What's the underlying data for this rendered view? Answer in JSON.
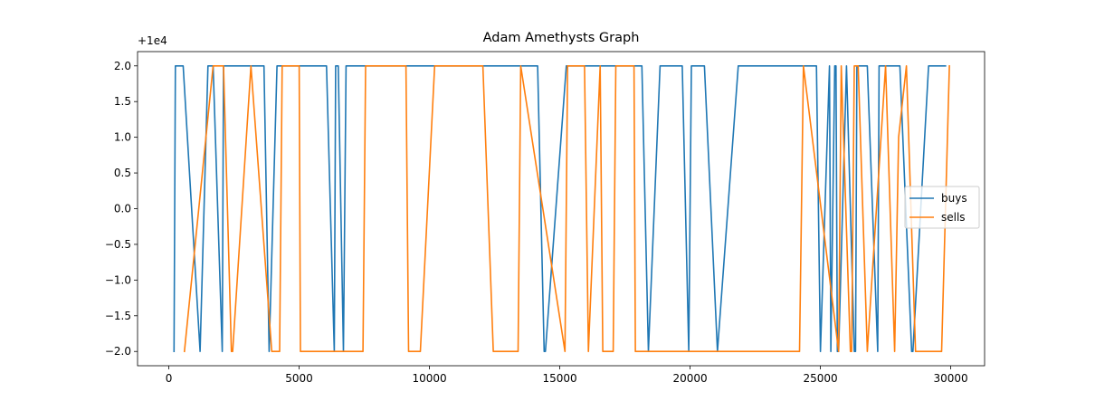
{
  "chart_data": {
    "type": "line",
    "title": "Adam Amethysts Graph",
    "xlabel": "",
    "ylabel": "",
    "y_offset_label": "+1e4",
    "xlim": [
      -1200,
      31300
    ],
    "ylim": [
      -2.2,
      2.2
    ],
    "x_ticks": [
      0,
      5000,
      10000,
      15000,
      20000,
      25000,
      30000
    ],
    "x_tick_labels": [
      "0",
      "5000",
      "10000",
      "15000",
      "20000",
      "25000",
      "30000"
    ],
    "y_ticks": [
      2.0,
      1.5,
      1.0,
      0.5,
      0.0,
      -0.5,
      -1.0,
      -1.5,
      -2.0
    ],
    "y_tick_labels": [
      "2.0",
      "1.5",
      "1.0",
      "0.5",
      "0.0",
      "−0.5",
      "−1.0",
      "−1.5",
      "−2.0"
    ],
    "grid": false,
    "legend_position": "center-right",
    "series": [
      {
        "name": "buys",
        "color": "#1f77b4",
        "x": [
          200,
          250,
          550,
          1200,
          1500,
          1700,
          2050,
          2100,
          3650,
          3850,
          4150,
          4200,
          4300,
          6050,
          6350,
          6400,
          6500,
          6700,
          6800,
          13550,
          13650,
          14150,
          14400,
          14450,
          15250,
          15300,
          17850,
          18150,
          18400,
          18850,
          19100,
          19700,
          19950,
          20050,
          20200,
          20550,
          21050,
          21850,
          23700,
          24050,
          24350,
          24850,
          25000,
          25350,
          25400,
          25550,
          25600,
          25650,
          25700,
          26000,
          26300,
          26350,
          26400,
          26800,
          27200,
          27250,
          27600,
          28050,
          28500,
          28550,
          29150,
          29800
        ],
        "y": [
          -2.0,
          2.0,
          2.0,
          -2.0,
          2.0,
          2.0,
          -2.0,
          2.0,
          2.0,
          -2.0,
          2.0,
          2.0,
          2.0,
          2.0,
          -2.0,
          2.0,
          2.0,
          -2.0,
          2.0,
          2.0,
          2.0,
          2.0,
          -2.0,
          -2.0,
          2.0,
          2.0,
          2.0,
          2.0,
          -2.0,
          2.0,
          2.0,
          2.0,
          -2.0,
          2.0,
          2.0,
          2.0,
          -2.0,
          2.0,
          2.0,
          2.0,
          2.0,
          2.0,
          -2.0,
          2.0,
          -2.0,
          2.0,
          2.0,
          -2.0,
          -2.0,
          2.0,
          -2.0,
          -2.0,
          2.0,
          2.0,
          -2.0,
          2.0,
          2.0,
          2.0,
          -2.0,
          -2.0,
          2.0,
          2.0
        ]
      },
      {
        "name": "sells",
        "color": "#ff7f0e",
        "x": [
          600,
          1700,
          2100,
          2400,
          2450,
          3150,
          3950,
          4150,
          4250,
          4350,
          5000,
          5050,
          5550,
          7450,
          7550,
          9100,
          9200,
          9650,
          10200,
          12050,
          12450,
          13400,
          13500,
          15200,
          15300,
          15950,
          16100,
          16550,
          16650,
          17050,
          17150,
          17850,
          17900,
          24200,
          24350,
          25700,
          25800,
          26150,
          26200,
          26300,
          26450,
          26800,
          27500,
          27850,
          28000,
          28300,
          28650,
          29400,
          29650,
          29950
        ],
        "y": [
          -2.0,
          2.0,
          2.0,
          -2.0,
          -2.0,
          2.0,
          -2.0,
          -2.0,
          -2.0,
          2.0,
          2.0,
          -2.0,
          -2.0,
          -2.0,
          2.0,
          2.0,
          -2.0,
          -2.0,
          2.0,
          2.0,
          -2.0,
          -2.0,
          2.0,
          -2.0,
          2.0,
          2.0,
          -2.0,
          2.0,
          -2.0,
          -2.0,
          2.0,
          2.0,
          -2.0,
          -2.0,
          2.0,
          -2.0,
          2.0,
          -2.0,
          -2.0,
          2.0,
          2.0,
          -2.0,
          2.0,
          -2.0,
          1.0,
          2.0,
          -2.0,
          -2.0,
          -2.0,
          2.0
        ]
      }
    ]
  }
}
